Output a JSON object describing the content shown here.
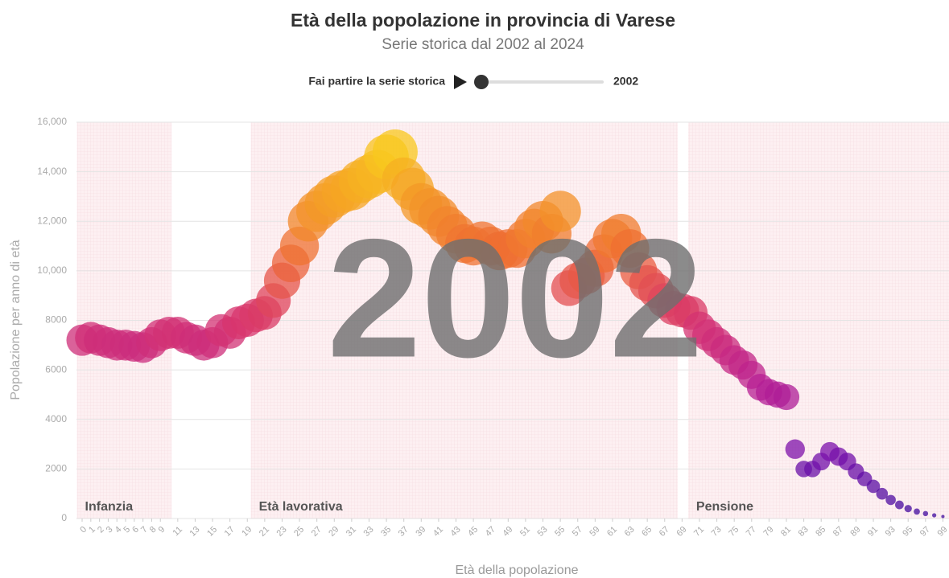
{
  "chart_data": {
    "type": "scatter",
    "title": "Età della popolazione in provincia di Varese",
    "subtitle": "Serie storica dal 2002 al 2024",
    "control_label": "Fai partire la serie storica",
    "year": "2002",
    "x_label": "Età della popolazione",
    "y_label": "Popolazione per anno di età",
    "x": [
      0,
      1,
      2,
      3,
      4,
      5,
      6,
      7,
      8,
      9,
      10,
      11,
      12,
      13,
      14,
      15,
      16,
      17,
      18,
      19,
      20,
      21,
      22,
      23,
      24,
      25,
      26,
      27,
      28,
      29,
      30,
      31,
      32,
      33,
      34,
      35,
      36,
      37,
      38,
      39,
      40,
      41,
      42,
      43,
      44,
      45,
      46,
      47,
      48,
      49,
      50,
      51,
      52,
      53,
      54,
      55,
      56,
      57,
      58,
      59,
      60,
      61,
      62,
      63,
      64,
      65,
      66,
      67,
      68,
      69,
      70,
      71,
      72,
      73,
      74,
      75,
      76,
      77,
      78,
      79,
      80,
      81,
      82,
      83,
      84,
      85,
      86,
      87,
      88,
      89,
      90,
      91,
      92,
      93,
      94,
      95,
      96,
      97,
      98,
      99
    ],
    "values": [
      7200,
      7300,
      7200,
      7100,
      7000,
      7000,
      6950,
      6900,
      7100,
      7400,
      7500,
      7500,
      7300,
      7200,
      7000,
      7100,
      7600,
      7500,
      7900,
      8000,
      8200,
      8300,
      8800,
      9600,
      10300,
      11000,
      12000,
      12400,
      12700,
      13000,
      13200,
      13300,
      13600,
      13800,
      14000,
      14600,
      14800,
      13700,
      13300,
      12700,
      12500,
      12200,
      11800,
      11500,
      11100,
      11000,
      11200,
      11000,
      10800,
      10900,
      10900,
      11300,
      11700,
      12000,
      11500,
      12400,
      9300,
      9600,
      9800,
      10100,
      10700,
      11300,
      11500,
      10900,
      10000,
      9500,
      9200,
      8800,
      8500,
      8400,
      8300,
      7700,
      7400,
      7100,
      6800,
      6400,
      6200,
      5800,
      5300,
      5100,
      5000,
      4900,
      2800,
      2000,
      2000,
      2300,
      2700,
      2500,
      2300,
      1900,
      1600,
      1300,
      1000,
      750,
      550,
      400,
      280,
      200,
      130,
      80
    ],
    "colorscale": [
      "#3b0a9c",
      "#7a10ab",
      "#b81f93",
      "#d8356d",
      "#ee6a33",
      "#f5a623",
      "#fbe41a"
    ],
    "xlim": [
      -0.65,
      99.7
    ],
    "ylim": [
      0,
      16000
    ],
    "xticks": [
      0,
      1,
      2,
      3,
      4,
      5,
      6,
      7,
      8,
      9,
      11,
      13,
      15,
      17,
      19,
      21,
      23,
      25,
      27,
      29,
      31,
      33,
      35,
      37,
      39,
      41,
      43,
      45,
      47,
      49,
      51,
      53,
      55,
      57,
      59,
      61,
      63,
      65,
      67,
      69,
      71,
      73,
      75,
      77,
      79,
      81,
      83,
      85,
      87,
      89,
      91,
      93,
      95,
      97,
      99
    ],
    "yticks": [
      0,
      2000,
      4000,
      6000,
      8000,
      {
        "value": 10000,
        "label": "10,000"
      },
      {
        "value": 12000,
        "label": "12,000"
      },
      {
        "value": 14000,
        "label": "14,000"
      },
      {
        "value": 16000,
        "label": "16,000"
      }
    ],
    "grid": true,
    "regions": [
      {
        "label": "Infanzia",
        "range": [
          -0.6,
          10.3
        ]
      },
      {
        "label": "Età lavorativa",
        "range": [
          19.4,
          68.5
        ]
      },
      {
        "label": "Pensione",
        "range": [
          69.7,
          99.7
        ]
      }
    ]
  }
}
